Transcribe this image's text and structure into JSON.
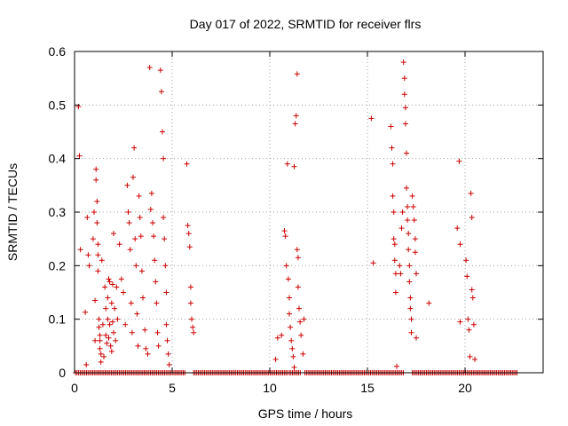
{
  "chart_data": {
    "type": "scatter",
    "title": "Day 017 of 2022, SRMTID for receiver flrs",
    "xlabel": "GPS time / hours",
    "ylabel": "SRMTID / TECUs",
    "xlim": [
      0,
      24
    ],
    "ylim": [
      0,
      0.6
    ],
    "xticks": [
      0,
      5,
      10,
      15,
      20
    ],
    "xtick_labels": [
      "0",
      "5",
      "10",
      "15",
      "20"
    ],
    "yticks": [
      0,
      0.1,
      0.2,
      0.3,
      0.4,
      0.5,
      0.6
    ],
    "ytick_labels": [
      "0",
      "0.1",
      "0.2",
      "0.3",
      "0.4",
      "0.5",
      "0.6"
    ],
    "grid": true,
    "marker": "plus",
    "color": "#cc0000",
    "zero_baseline_segments": [
      [
        0.05,
        5.7
      ],
      [
        6.1,
        10.9
      ],
      [
        11.0,
        11.6
      ],
      [
        11.8,
        16.9
      ],
      [
        17.3,
        22.7
      ]
    ],
    "series": [
      {
        "name": "flrs",
        "points": [
          [
            0.2,
            0.497
          ],
          [
            0.25,
            0.405
          ],
          [
            0.3,
            0.23
          ],
          [
            0.55,
            0.113
          ],
          [
            0.6,
            0.015
          ],
          [
            0.65,
            0.29
          ],
          [
            0.7,
            0.22
          ],
          [
            0.75,
            0.2
          ],
          [
            0.95,
            0.25
          ],
          [
            1.0,
            0.3
          ],
          [
            1.05,
            0.135
          ],
          [
            1.05,
            0.06
          ],
          [
            1.1,
            0.38
          ],
          [
            1.1,
            0.36
          ],
          [
            1.15,
            0.32
          ],
          [
            1.15,
            0.28
          ],
          [
            1.2,
            0.24
          ],
          [
            1.2,
            0.22
          ],
          [
            1.2,
            0.19
          ],
          [
            1.25,
            0.1
          ],
          [
            1.25,
            0.085
          ],
          [
            1.3,
            0.07
          ],
          [
            1.3,
            0.06
          ],
          [
            1.3,
            0.045
          ],
          [
            1.35,
            0.035
          ],
          [
            1.35,
            0.02
          ],
          [
            1.4,
            0.21
          ],
          [
            1.45,
            0.09
          ],
          [
            1.5,
            0.03
          ],
          [
            1.55,
            0.16
          ],
          [
            1.6,
            0.12
          ],
          [
            1.6,
            0.07
          ],
          [
            1.65,
            0.055
          ],
          [
            1.7,
            0.14
          ],
          [
            1.7,
            0.1
          ],
          [
            1.75,
            0.175
          ],
          [
            1.75,
            0.065
          ],
          [
            1.8,
            0.17
          ],
          [
            1.8,
            0.09
          ],
          [
            1.85,
            0.05
          ],
          [
            1.9,
            0.04
          ],
          [
            1.9,
            0.13
          ],
          [
            1.95,
            0.165
          ],
          [
            1.95,
            0.095
          ],
          [
            2.0,
            0.26
          ],
          [
            2.0,
            0.075
          ],
          [
            2.05,
            0.12
          ],
          [
            2.1,
            0.06
          ],
          [
            2.15,
            0.16
          ],
          [
            2.2,
            0.1
          ],
          [
            2.3,
            0.24
          ],
          [
            2.4,
            0.175
          ],
          [
            2.5,
            0.15
          ],
          [
            2.6,
            0.09
          ],
          [
            2.7,
            0.35
          ],
          [
            2.75,
            0.3
          ],
          [
            2.8,
            0.28
          ],
          [
            2.85,
            0.23
          ],
          [
            2.9,
            0.13
          ],
          [
            2.95,
            0.075
          ],
          [
            3.0,
            0.365
          ],
          [
            3.05,
            0.42
          ],
          [
            3.1,
            0.25
          ],
          [
            3.15,
            0.2
          ],
          [
            3.2,
            0.11
          ],
          [
            3.25,
            0.05
          ],
          [
            3.3,
            0.33
          ],
          [
            3.35,
            0.29
          ],
          [
            3.4,
            0.255
          ],
          [
            3.45,
            0.19
          ],
          [
            3.5,
            0.14
          ],
          [
            3.6,
            0.08
          ],
          [
            3.65,
            0.045
          ],
          [
            3.75,
            0.035
          ],
          [
            3.85,
            0.57
          ],
          [
            3.9,
            0.305
          ],
          [
            3.95,
            0.335
          ],
          [
            4.0,
            0.28
          ],
          [
            4.05,
            0.255
          ],
          [
            4.1,
            0.21
          ],
          [
            4.15,
            0.17
          ],
          [
            4.2,
            0.13
          ],
          [
            4.25,
            0.075
          ],
          [
            4.3,
            0.05
          ],
          [
            4.4,
            0.565
          ],
          [
            4.45,
            0.525
          ],
          [
            4.5,
            0.45
          ],
          [
            4.55,
            0.4
          ],
          [
            4.55,
            0.29
          ],
          [
            4.6,
            0.25
          ],
          [
            4.65,
            0.2
          ],
          [
            4.7,
            0.15
          ],
          [
            4.7,
            0.09
          ],
          [
            4.75,
            0.06
          ],
          [
            4.8,
            0.035
          ],
          [
            4.85,
            0.015
          ],
          [
            5.75,
            0.39
          ],
          [
            5.8,
            0.275
          ],
          [
            5.85,
            0.26
          ],
          [
            5.9,
            0.235
          ],
          [
            5.95,
            0.16
          ],
          [
            5.95,
            0.13
          ],
          [
            6.0,
            0.1
          ],
          [
            6.05,
            0.085
          ],
          [
            6.1,
            0.075
          ],
          [
            10.3,
            0.025
          ],
          [
            10.4,
            0.065
          ],
          [
            10.6,
            0.07
          ],
          [
            10.75,
            0.265
          ],
          [
            10.8,
            0.255
          ],
          [
            10.85,
            0.2
          ],
          [
            10.9,
            0.39
          ],
          [
            10.95,
            0.175
          ],
          [
            11.0,
            0.14
          ],
          [
            11.0,
            0.11
          ],
          [
            11.05,
            0.085
          ],
          [
            11.1,
            0.06
          ],
          [
            11.15,
            0.045
          ],
          [
            11.2,
            0.03
          ],
          [
            11.25,
            0.01
          ],
          [
            11.25,
            0.385
          ],
          [
            11.3,
            0.465
          ],
          [
            11.35,
            0.48
          ],
          [
            11.4,
            0.558
          ],
          [
            11.4,
            0.23
          ],
          [
            11.45,
            0.215
          ],
          [
            11.45,
            0.16
          ],
          [
            11.5,
            0.12
          ],
          [
            11.55,
            0.095
          ],
          [
            11.6,
            0.07
          ],
          [
            11.7,
            0.035
          ],
          [
            11.75,
            0.1
          ],
          [
            15.2,
            0.475
          ],
          [
            15.3,
            0.205
          ],
          [
            16.2,
            0.46
          ],
          [
            16.25,
            0.42
          ],
          [
            16.3,
            0.39
          ],
          [
            16.3,
            0.33
          ],
          [
            16.35,
            0.3
          ],
          [
            16.35,
            0.25
          ],
          [
            16.4,
            0.24
          ],
          [
            16.4,
            0.21
          ],
          [
            16.45,
            0.185
          ],
          [
            16.45,
            0.15
          ],
          [
            16.5,
            0.012
          ],
          [
            16.65,
            0.2
          ],
          [
            16.7,
            0.185
          ],
          [
            16.75,
            0.27
          ],
          [
            16.8,
            0.3
          ],
          [
            16.85,
            0.58
          ],
          [
            16.9,
            0.55
          ],
          [
            16.9,
            0.52
          ],
          [
            16.95,
            0.495
          ],
          [
            16.95,
            0.465
          ],
          [
            17.0,
            0.41
          ],
          [
            17.0,
            0.345
          ],
          [
            17.05,
            0.31
          ],
          [
            17.05,
            0.285
          ],
          [
            17.1,
            0.26
          ],
          [
            17.1,
            0.23
          ],
          [
            17.15,
            0.2
          ],
          [
            17.15,
            0.17
          ],
          [
            17.2,
            0.14
          ],
          [
            17.2,
            0.12
          ],
          [
            17.25,
            0.1
          ],
          [
            17.25,
            0.075
          ],
          [
            17.3,
            0.33
          ],
          [
            17.35,
            0.31
          ],
          [
            17.4,
            0.285
          ],
          [
            17.45,
            0.25
          ],
          [
            17.45,
            0.225
          ],
          [
            17.5,
            0.185
          ],
          [
            17.5,
            0.065
          ],
          [
            18.15,
            0.13
          ],
          [
            19.6,
            0.27
          ],
          [
            19.7,
            0.395
          ],
          [
            19.75,
            0.24
          ],
          [
            19.75,
            0.095
          ],
          [
            20.05,
            0.21
          ],
          [
            20.1,
            0.18
          ],
          [
            20.15,
            0.1
          ],
          [
            20.2,
            0.08
          ],
          [
            20.25,
            0.03
          ],
          [
            20.3,
            0.335
          ],
          [
            20.35,
            0.29
          ],
          [
            20.35,
            0.155
          ],
          [
            20.4,
            0.14
          ],
          [
            20.45,
            0.09
          ],
          [
            20.5,
            0.025
          ]
        ]
      }
    ]
  }
}
